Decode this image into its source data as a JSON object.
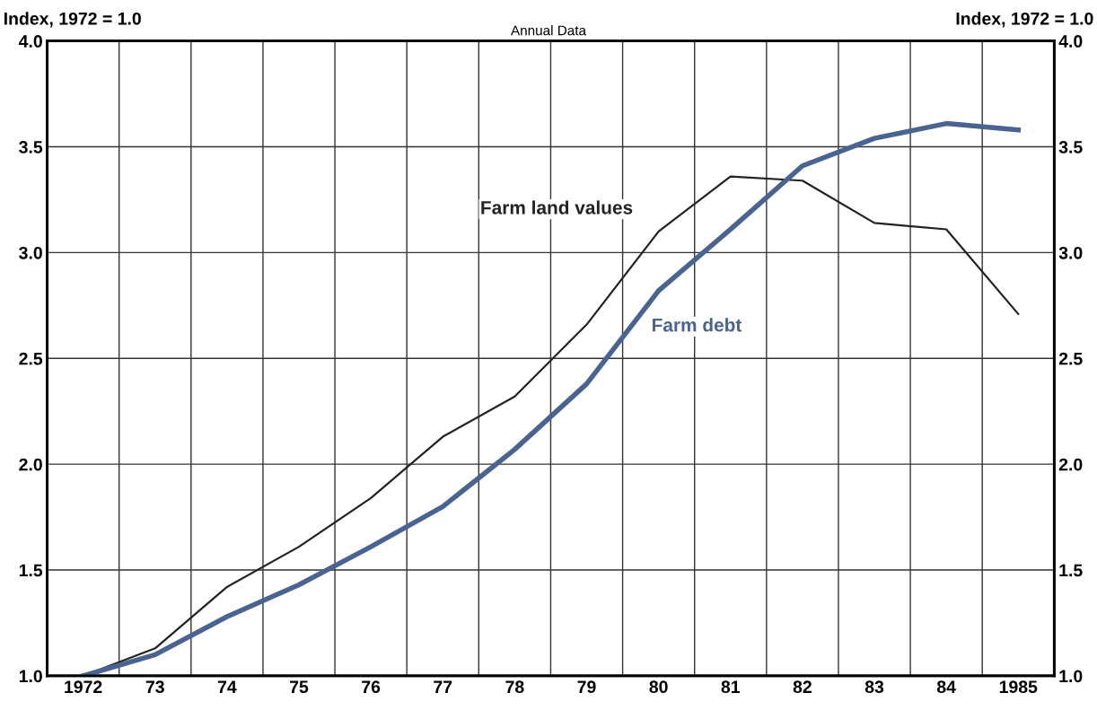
{
  "chart_data": {
    "type": "line",
    "subtitle": "Annual Data",
    "ylabel": "Index, 1972 = 1.0",
    "y2label": "Index, 1972 = 1.0",
    "categories": [
      "1972",
      "73",
      "74",
      "75",
      "76",
      "77",
      "78",
      "79",
      "80",
      "81",
      "82",
      "83",
      "84",
      "1985"
    ],
    "series": [
      {
        "name": "Farm land values",
        "color": "#222222",
        "values": [
          1.0,
          1.13,
          1.42,
          1.61,
          1.84,
          2.13,
          2.32,
          2.66,
          3.1,
          3.36,
          3.34,
          3.14,
          3.11,
          2.71
        ]
      },
      {
        "name": "Farm debt",
        "color": "#4a6491",
        "values": [
          1.0,
          1.1,
          1.28,
          1.43,
          1.61,
          1.8,
          2.07,
          2.38,
          2.82,
          3.11,
          3.41,
          3.54,
          3.61,
          3.58
        ]
      }
    ],
    "ylim": [
      1.0,
      4.0
    ],
    "yticks": [
      {
        "value": 1.0,
        "label": "1.0"
      },
      {
        "value": 1.5,
        "label": "1.5"
      },
      {
        "value": 2.0,
        "label": "2.0"
      },
      {
        "value": 2.5,
        "label": "2.5"
      },
      {
        "value": 3.0,
        "label": "3.0"
      },
      {
        "value": 3.5,
        "label": "3.5"
      },
      {
        "value": 4.0,
        "label": "4.0"
      }
    ],
    "y2lim": [
      1.0,
      4.0
    ],
    "y2ticks": [
      {
        "value": 1.0,
        "label": "1.0"
      },
      {
        "value": 1.5,
        "label": "1.5"
      },
      {
        "value": 2.0,
        "label": "2.0"
      },
      {
        "value": 2.5,
        "label": "2.5"
      },
      {
        "value": 3.0,
        "label": "3.0"
      },
      {
        "value": 3.5,
        "label": "3.5"
      },
      {
        "value": 4.0,
        "label": "4.0"
      }
    ],
    "grid": true,
    "legend": false,
    "marker": "none",
    "line_style": "solid"
  }
}
